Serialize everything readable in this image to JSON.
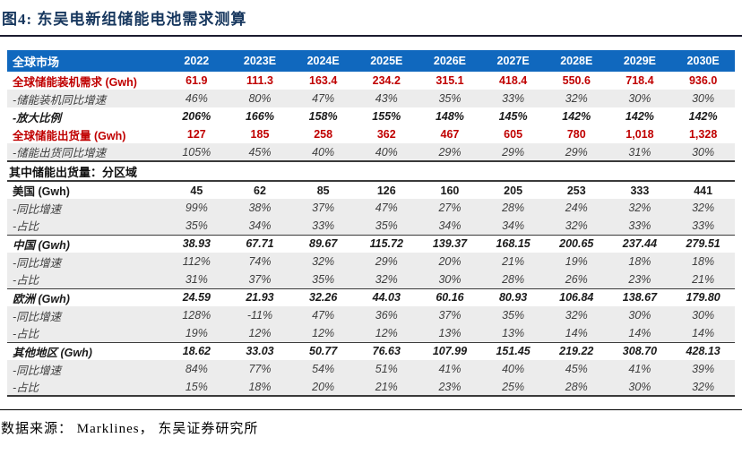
{
  "title": "图4:  东吴电新组储能电池需求测算",
  "footer": {
    "source": "数据来源： Marklines， 东吴证券研究所"
  },
  "colors": {
    "header_bg": "#1068BE",
    "highlight_red": "#C00000",
    "title_navy": "#17375E",
    "stripe_gray": "#ECECEC"
  },
  "chart_data": {
    "type": "table",
    "title": "东吴电新组储能电池需求测算",
    "columns": [
      "全球市场",
      "2022",
      "2023E",
      "2024E",
      "2025E",
      "2026E",
      "2027E",
      "2028E",
      "2029E",
      "2030E"
    ],
    "rows": [
      {
        "label": "全球储能装机需求 (Gwh)",
        "style": "red",
        "values": [
          "61.9",
          "111.3",
          "163.4",
          "234.2",
          "315.1",
          "418.4",
          "550.6",
          "718.4",
          "936.0"
        ]
      },
      {
        "label": "-储能装机同比增速",
        "style": "pct",
        "values": [
          "46%",
          "80%",
          "47%",
          "43%",
          "35%",
          "33%",
          "32%",
          "30%",
          "30%"
        ]
      },
      {
        "label": "-放大比例",
        "style": "boldit",
        "values": [
          "206%",
          "166%",
          "158%",
          "155%",
          "148%",
          "145%",
          "142%",
          "142%",
          "142%"
        ]
      },
      {
        "label": "全球储能出货量 (Gwh)",
        "style": "red",
        "values": [
          "127",
          "185",
          "258",
          "362",
          "467",
          "605",
          "780",
          "1,018",
          "1,328"
        ]
      },
      {
        "label": "-储能出货同比增速",
        "style": "pct",
        "values": [
          "105%",
          "45%",
          "40%",
          "40%",
          "29%",
          "29%",
          "29%",
          "31%",
          "30%"
        ]
      },
      {
        "label": "其中储能出货量：分区域",
        "style": "section",
        "values": []
      },
      {
        "label": "美国 (Gwh)",
        "style": "bold",
        "values": [
          "45",
          "62",
          "85",
          "126",
          "160",
          "205",
          "253",
          "333",
          "441"
        ]
      },
      {
        "label": "-同比增速",
        "style": "pct",
        "values": [
          "99%",
          "38%",
          "37%",
          "47%",
          "27%",
          "28%",
          "24%",
          "32%",
          "32%"
        ]
      },
      {
        "label": "-占比",
        "style": "pct",
        "values": [
          "35%",
          "34%",
          "33%",
          "35%",
          "34%",
          "34%",
          "32%",
          "33%",
          "33%"
        ]
      },
      {
        "label": "中国 (Gwh)",
        "style": "boldit rule",
        "values": [
          "38.93",
          "67.71",
          "89.67",
          "115.72",
          "139.37",
          "168.15",
          "200.65",
          "237.44",
          "279.51"
        ]
      },
      {
        "label": "-同比增速",
        "style": "pct",
        "values": [
          "112%",
          "74%",
          "32%",
          "29%",
          "20%",
          "21%",
          "19%",
          "18%",
          "18%"
        ]
      },
      {
        "label": "-占比",
        "style": "pct",
        "values": [
          "31%",
          "37%",
          "35%",
          "32%",
          "30%",
          "28%",
          "26%",
          "23%",
          "21%"
        ]
      },
      {
        "label": "欧洲 (Gwh)",
        "style": "boldit rule",
        "values": [
          "24.59",
          "21.93",
          "32.26",
          "44.03",
          "60.16",
          "80.93",
          "106.84",
          "138.67",
          "179.80"
        ]
      },
      {
        "label": "-同比增速",
        "style": "pct",
        "values": [
          "128%",
          "-11%",
          "47%",
          "36%",
          "37%",
          "35%",
          "32%",
          "30%",
          "30%"
        ]
      },
      {
        "label": "-占比",
        "style": "pct",
        "values": [
          "19%",
          "12%",
          "12%",
          "12%",
          "13%",
          "13%",
          "14%",
          "14%",
          "14%"
        ]
      },
      {
        "label": "其他地区 (Gwh)",
        "style": "boldit rule",
        "values": [
          "18.62",
          "33.03",
          "50.77",
          "76.63",
          "107.99",
          "151.45",
          "219.22",
          "308.70",
          "428.13"
        ]
      },
      {
        "label": "-同比增速",
        "style": "pct",
        "values": [
          "84%",
          "77%",
          "54%",
          "51%",
          "41%",
          "40%",
          "45%",
          "41%",
          "39%"
        ]
      },
      {
        "label": "-占比",
        "style": "pct last",
        "values": [
          "15%",
          "18%",
          "20%",
          "21%",
          "23%",
          "25%",
          "28%",
          "30%",
          "32%"
        ]
      }
    ]
  }
}
